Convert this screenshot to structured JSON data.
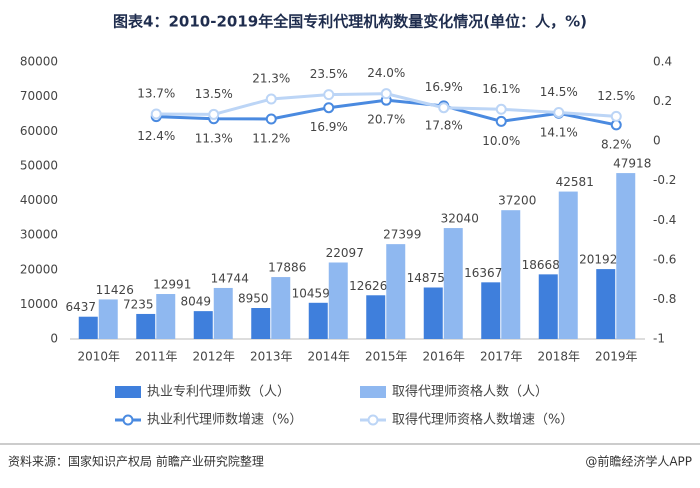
{
  "chart_data": {
    "type": "bar",
    "title": "图表4：2010-2019年全国专利代理机构数量变化情况(单位：人，%)",
    "categories": [
      "2010年",
      "2011年",
      "2012年",
      "2013年",
      "2014年",
      "2015年",
      "2016年",
      "2017年",
      "2018年",
      "2019年"
    ],
    "series": [
      {
        "name": "执业专利代理师数（人）",
        "color": "#3f7fdc",
        "values": [
          6437,
          7235,
          8049,
          8950,
          10459,
          12626,
          14875,
          16367,
          18668,
          20192
        ]
      },
      {
        "name": "取得代理师资格人数（人）",
        "color": "#8fb8f0",
        "values": [
          11426,
          12991,
          14744,
          17886,
          22097,
          27399,
          32040,
          37200,
          42581,
          47918
        ]
      },
      {
        "name": "执业利代理师数增速（%）",
        "type": "line",
        "axis": "y2",
        "color": "#4a8ae0",
        "values": [
          null,
          0.124,
          0.113,
          0.112,
          0.169,
          0.207,
          0.178,
          0.1,
          0.141,
          0.082
        ],
        "value_labels": [
          null,
          "12.4%",
          "11.3%",
          "11.2%",
          "16.9%",
          "20.7%",
          "17.8%",
          "10.0%",
          "14.1%",
          "8.2%"
        ]
      },
      {
        "name": "取得代理师资格人数增速（%）",
        "type": "line",
        "axis": "y2",
        "color": "#bcd5f6",
        "values": [
          null,
          0.137,
          0.135,
          0.213,
          0.235,
          0.24,
          0.169,
          0.161,
          0.145,
          0.125
        ],
        "value_labels": [
          null,
          "13.7%",
          "13.5%",
          "21.3%",
          "23.5%",
          "24.0%",
          "16.9%",
          "16.1%",
          "14.5%",
          "12.5%"
        ]
      }
    ],
    "ylim": [
      0,
      80000
    ],
    "yticks": [
      0,
      10000,
      20000,
      30000,
      40000,
      50000,
      60000,
      70000,
      80000
    ],
    "y2lim": [
      -1,
      0.4
    ],
    "y2ticks": [
      -1,
      -0.8,
      -0.6,
      -0.4,
      -0.2,
      0,
      0.2,
      0.4
    ],
    "source": "资料来源：国家知识产权局 前瞻产业研究院整理",
    "credit": "@前瞻经济学人APP"
  }
}
